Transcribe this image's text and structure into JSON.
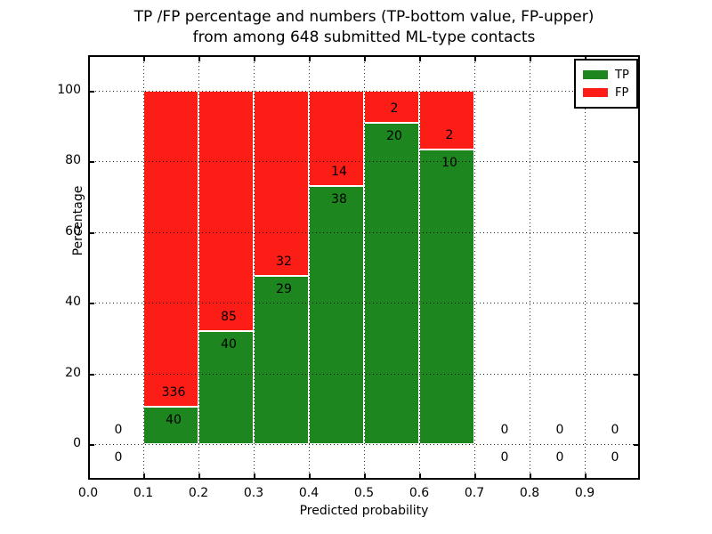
{
  "chart_data": {
    "type": "bar",
    "stacked": true,
    "title_line1": "TP /FP percentage and numbers (TP-bottom value, FP-upper)",
    "title_line2": "from among 648 submitted ML-type contacts",
    "xlabel": "Predicted probability",
    "ylabel": "Percentage",
    "xlim": [
      0.0,
      1.0
    ],
    "ylim": [
      -10,
      110
    ],
    "xticks": [
      0.0,
      0.1,
      0.2,
      0.3,
      0.4,
      0.5,
      0.6,
      0.7,
      0.8,
      0.9
    ],
    "xtick_labels": [
      "0.0",
      "0.1",
      "0.2",
      "0.3",
      "0.4",
      "0.5",
      "0.6",
      "0.7",
      "0.8",
      "0.9"
    ],
    "yticks": [
      0,
      20,
      40,
      60,
      80,
      100
    ],
    "ytick_labels": [
      "0",
      "20",
      "40",
      "60",
      "80",
      "100"
    ],
    "grid": true,
    "total_contacts": 648,
    "colors": {
      "tp": "#1e861e",
      "fp": "#fc1d16"
    },
    "legend": {
      "position": "upper-right",
      "entries": [
        {
          "label": "TP",
          "color": "#1e861e"
        },
        {
          "label": "FP",
          "color": "#fc1d16"
        }
      ]
    },
    "bins": [
      {
        "range": [
          0.0,
          0.1
        ],
        "tp": 0,
        "fp": 0
      },
      {
        "range": [
          0.1,
          0.2
        ],
        "tp": 40,
        "fp": 336
      },
      {
        "range": [
          0.2,
          0.3
        ],
        "tp": 40,
        "fp": 85
      },
      {
        "range": [
          0.3,
          0.4
        ],
        "tp": 29,
        "fp": 32
      },
      {
        "range": [
          0.4,
          0.5
        ],
        "tp": 38,
        "fp": 14
      },
      {
        "range": [
          0.5,
          0.6
        ],
        "tp": 20,
        "fp": 2
      },
      {
        "range": [
          0.6,
          0.7
        ],
        "tp": 10,
        "fp": 2
      },
      {
        "range": [
          0.7,
          0.8
        ],
        "tp": 0,
        "fp": 0
      },
      {
        "range": [
          0.8,
          0.9
        ],
        "tp": 0,
        "fp": 0
      },
      {
        "range": [
          0.9,
          1.0
        ],
        "tp": 0,
        "fp": 0
      }
    ]
  }
}
